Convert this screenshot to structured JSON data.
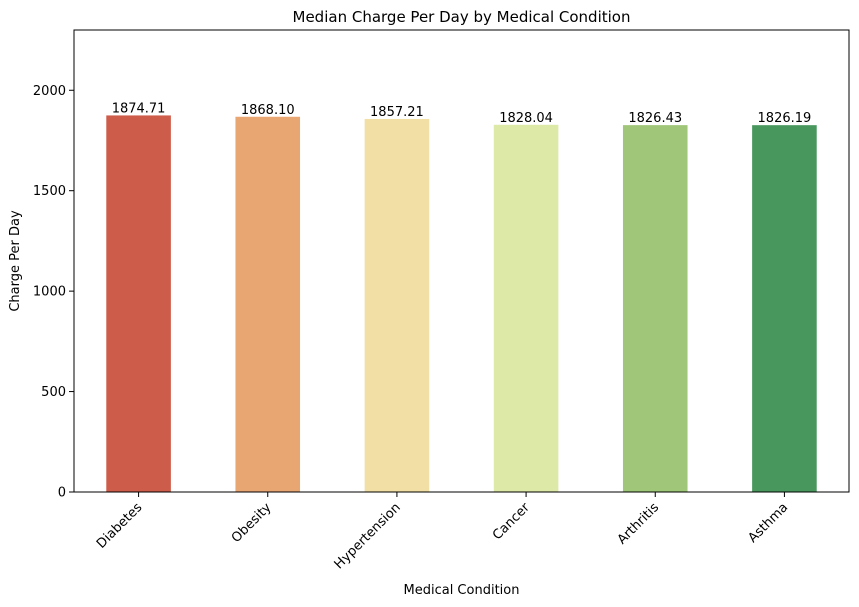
{
  "chart_data": {
    "type": "bar",
    "title": "Median Charge Per Day by Medical Condition",
    "xlabel": "Medical Condition",
    "ylabel": "Charge Per Day",
    "categories": [
      "Diabetes",
      "Obesity",
      "Hypertension",
      "Cancer",
      "Arthritis",
      "Asthma"
    ],
    "values": [
      1874.71,
      1868.1,
      1857.21,
      1828.04,
      1826.43,
      1826.19
    ],
    "data_labels": [
      "1874.71",
      "1868.10",
      "1857.21",
      "1828.04",
      "1826.43",
      "1826.19"
    ],
    "colors": [
      "#cd5c4a",
      "#e8a673",
      "#f2dfa5",
      "#dde9a6",
      "#a0c779",
      "#48975d"
    ],
    "ylim": [
      0,
      2300
    ],
    "yticks": [
      0,
      500,
      1000,
      1500,
      2000
    ],
    "grid": false,
    "legend": "none"
  }
}
